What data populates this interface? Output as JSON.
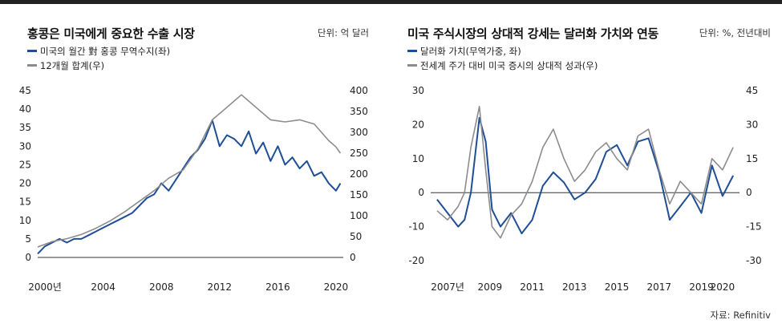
{
  "chart_data": [
    {
      "type": "line",
      "title": "홍콩은 미국에게 중요한 수출 시장",
      "unit": "단위: 억 달러",
      "x_labels": [
        "2000년",
        "2004",
        "2008",
        "2012",
        "2016",
        "2020"
      ],
      "x_range": [
        2000,
        2021
      ],
      "y_left": {
        "range": [
          0,
          45
        ],
        "ticks": [
          "0",
          "5",
          "10",
          "15",
          "20",
          "25",
          "30",
          "35",
          "40",
          "45"
        ]
      },
      "y_right": {
        "range": [
          0,
          400
        ],
        "ticks": [
          "0",
          "50",
          "100",
          "150",
          "200",
          "250",
          "300",
          "350",
          "400"
        ]
      },
      "series": [
        {
          "name": "미국의 월간 對 홍콩 무역수지(좌)",
          "color": "#1f4e96",
          "axis": "left",
          "x": [
            2000,
            2000.5,
            2001,
            2001.5,
            2002,
            2002.5,
            2003,
            2003.5,
            2004,
            2004.5,
            2005,
            2005.5,
            2006,
            2006.5,
            2007,
            2007.5,
            2008,
            2008.5,
            2009,
            2009.5,
            2010,
            2010.5,
            2011,
            2011.5,
            2012,
            2012.5,
            2013,
            2013.5,
            2014,
            2014.5,
            2015,
            2015.5,
            2016,
            2016.5,
            2017,
            2017.5,
            2018,
            2018.5,
            2019,
            2019.5,
            2020,
            2020.5,
            2020.8
          ],
          "y": [
            1,
            3,
            4,
            5,
            4,
            5,
            5,
            6,
            7,
            8,
            9,
            10,
            11,
            12,
            14,
            16,
            17,
            20,
            18,
            21,
            24,
            27,
            29,
            32,
            37,
            30,
            33,
            32,
            30,
            34,
            28,
            31,
            26,
            30,
            25,
            27,
            24,
            26,
            22,
            23,
            20,
            18,
            20
          ]
        },
        {
          "name": "12개월 합계(우)",
          "color": "#8c8c8c",
          "axis": "right",
          "x": [
            2000,
            2001,
            2002,
            2003,
            2004,
            2005,
            2006,
            2007,
            2008,
            2009,
            2010,
            2011,
            2012,
            2013,
            2014,
            2015,
            2016,
            2017,
            2018,
            2019,
            2020,
            2020.5,
            2020.8
          ],
          "y": [
            25,
            38,
            45,
            55,
            70,
            88,
            110,
            135,
            160,
            190,
            210,
            260,
            330,
            360,
            390,
            360,
            330,
            325,
            330,
            320,
            280,
            265,
            250
          ]
        }
      ],
      "grid": false
    },
    {
      "type": "line",
      "title": "미국 주식시장의 상대적 강세는 달러화 가치와 연동",
      "unit": "단위: %, 전년대비",
      "x_labels": [
        "2007년",
        "2009",
        "2011",
        "2013",
        "2015",
        "2017",
        "2019",
        "2020"
      ],
      "x_range": [
        2006.7,
        2021.3
      ],
      "y_left": {
        "range": [
          -20,
          30
        ],
        "ticks": [
          "-20",
          "-10",
          "0",
          "10",
          "20",
          "30"
        ]
      },
      "y_right": {
        "range": [
          -30,
          45
        ],
        "ticks": [
          "-30",
          "-15",
          "0",
          "15",
          "30",
          "45"
        ]
      },
      "series": [
        {
          "name": "달러화 가치(무역가중, 좌)",
          "color": "#1f4e96",
          "axis": "left",
          "x": [
            2007,
            2007.5,
            2008,
            2008.3,
            2008.6,
            2009,
            2009.3,
            2009.6,
            2010,
            2010.5,
            2011,
            2011.5,
            2012,
            2012.5,
            2013,
            2013.5,
            2014,
            2014.5,
            2015,
            2015.5,
            2016,
            2016.5,
            2017,
            2017.5,
            2018,
            2018.5,
            2019,
            2019.5,
            2020,
            2020.5,
            2021
          ],
          "y": [
            -2,
            -6,
            -10,
            -8,
            0,
            22,
            15,
            -5,
            -10,
            -6,
            -12,
            -8,
            2,
            6,
            3,
            -2,
            0,
            4,
            12,
            14,
            8,
            15,
            16,
            6,
            -8,
            -4,
            0,
            -6,
            8,
            -1,
            5
          ]
        },
        {
          "name": "전세계 주가 대비 미국 증시의 상대적 성과(우)",
          "color": "#8c8c8c",
          "axis": "right",
          "x": [
            2007,
            2007.5,
            2008,
            2008.3,
            2008.6,
            2009,
            2009.3,
            2009.6,
            2010,
            2010.5,
            2011,
            2011.5,
            2012,
            2012.5,
            2013,
            2013.5,
            2014,
            2014.5,
            2015,
            2015.5,
            2016,
            2016.5,
            2017,
            2017.5,
            2018,
            2018.5,
            2019,
            2019.5,
            2020,
            2020.5,
            2021
          ],
          "y": [
            -8,
            -12,
            -6,
            0,
            20,
            38,
            10,
            -15,
            -20,
            -10,
            -5,
            5,
            20,
            28,
            15,
            5,
            10,
            18,
            22,
            15,
            10,
            25,
            28,
            10,
            -5,
            5,
            0,
            -5,
            15,
            10,
            20
          ]
        }
      ],
      "grid": false
    }
  ],
  "source": "자료: Refinitiv"
}
